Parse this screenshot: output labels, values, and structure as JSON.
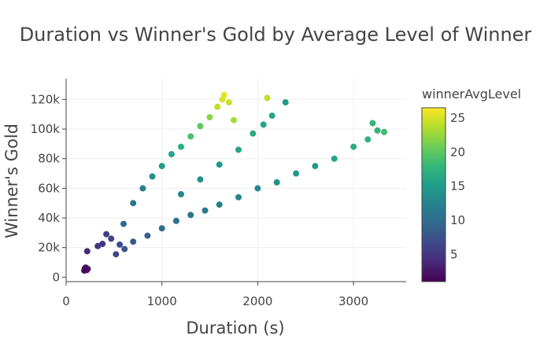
{
  "chart_data": {
    "type": "scatter",
    "title": "Duration vs Winner's Gold by Average Level of Winner",
    "xlabel": "Duration (s)",
    "ylabel": "Winner's Gold",
    "xlim": [
      0,
      3550
    ],
    "ylim": [
      -3000,
      134000
    ],
    "x_ticks": [
      {
        "value": 0,
        "label": "0"
      },
      {
        "value": 1000,
        "label": "1000"
      },
      {
        "value": 2000,
        "label": "2000"
      },
      {
        "value": 3000,
        "label": "3000"
      }
    ],
    "y_ticks": [
      {
        "value": 0,
        "label": "0"
      },
      {
        "value": 20000,
        "label": "20k"
      },
      {
        "value": 40000,
        "label": "40k"
      },
      {
        "value": 60000,
        "label": "60k"
      },
      {
        "value": 80000,
        "label": "80k"
      },
      {
        "value": 100000,
        "label": "100k"
      },
      {
        "value": 120000,
        "label": "120k"
      }
    ],
    "grid": true,
    "colorbar": {
      "title": "winnerAvgLevel",
      "range": [
        1,
        26.5
      ],
      "ticks": [
        {
          "value": 5,
          "label": "5"
        },
        {
          "value": 10,
          "label": "10"
        },
        {
          "value": 15,
          "label": "15"
        },
        {
          "value": 20,
          "label": "20"
        },
        {
          "value": 25,
          "label": "25"
        }
      ],
      "colorscale": [
        "#440154",
        "#482878",
        "#3e4989",
        "#31688e",
        "#26828e",
        "#1f9e89",
        "#35b779",
        "#6ece58",
        "#b5de2b",
        "#fde725"
      ]
    },
    "points": [
      {
        "x": 190,
        "y": 4500,
        "c": 1.5
      },
      {
        "x": 200,
        "y": 5200,
        "c": 2
      },
      {
        "x": 210,
        "y": 6000,
        "c": 2.5
      },
      {
        "x": 215,
        "y": 4800,
        "c": 1.8
      },
      {
        "x": 225,
        "y": 5600,
        "c": 2.2
      },
      {
        "x": 205,
        "y": 6500,
        "c": 2.8
      },
      {
        "x": 195,
        "y": 5800,
        "c": 1.6
      },
      {
        "x": 220,
        "y": 17500,
        "c": 4
      },
      {
        "x": 330,
        "y": 21000,
        "c": 5
      },
      {
        "x": 380,
        "y": 22500,
        "c": 5.5
      },
      {
        "x": 420,
        "y": 29000,
        "c": 6
      },
      {
        "x": 470,
        "y": 26000,
        "c": 6
      },
      {
        "x": 520,
        "y": 15500,
        "c": 6.5
      },
      {
        "x": 560,
        "y": 22000,
        "c": 7
      },
      {
        "x": 610,
        "y": 19000,
        "c": 7.5
      },
      {
        "x": 700,
        "y": 24000,
        "c": 8
      },
      {
        "x": 850,
        "y": 28000,
        "c": 9
      },
      {
        "x": 1000,
        "y": 33000,
        "c": 10
      },
      {
        "x": 1150,
        "y": 38000,
        "c": 10.5
      },
      {
        "x": 1300,
        "y": 42000,
        "c": 11
      },
      {
        "x": 1450,
        "y": 45000,
        "c": 11.5
      },
      {
        "x": 1600,
        "y": 49000,
        "c": 12
      },
      {
        "x": 1800,
        "y": 54000,
        "c": 12.5
      },
      {
        "x": 2000,
        "y": 60000,
        "c": 13
      },
      {
        "x": 2200,
        "y": 64000,
        "c": 14
      },
      {
        "x": 2400,
        "y": 70000,
        "c": 14.5
      },
      {
        "x": 2600,
        "y": 75000,
        "c": 15
      },
      {
        "x": 2800,
        "y": 80000,
        "c": 16
      },
      {
        "x": 3000,
        "y": 88000,
        "c": 17
      },
      {
        "x": 3150,
        "y": 93000,
        "c": 17.5
      },
      {
        "x": 3200,
        "y": 104000,
        "c": 18
      },
      {
        "x": 3250,
        "y": 99000,
        "c": 17.5
      },
      {
        "x": 3320,
        "y": 98000,
        "c": 18.5
      },
      {
        "x": 600,
        "y": 36000,
        "c": 10
      },
      {
        "x": 700,
        "y": 50000,
        "c": 11
      },
      {
        "x": 800,
        "y": 60000,
        "c": 12
      },
      {
        "x": 900,
        "y": 68000,
        "c": 14
      },
      {
        "x": 1000,
        "y": 75000,
        "c": 15
      },
      {
        "x": 1100,
        "y": 83000,
        "c": 16
      },
      {
        "x": 1200,
        "y": 88000,
        "c": 17
      },
      {
        "x": 1300,
        "y": 95000,
        "c": 19
      },
      {
        "x": 1400,
        "y": 102000,
        "c": 20
      },
      {
        "x": 1500,
        "y": 108000,
        "c": 22
      },
      {
        "x": 1580,
        "y": 115000,
        "c": 24
      },
      {
        "x": 1630,
        "y": 120000,
        "c": 25
      },
      {
        "x": 1650,
        "y": 123000,
        "c": 25.5
      },
      {
        "x": 1700,
        "y": 118000,
        "c": 24.5
      },
      {
        "x": 1750,
        "y": 106000,
        "c": 23
      },
      {
        "x": 2100,
        "y": 121000,
        "c": 24
      },
      {
        "x": 2060,
        "y": 103000,
        "c": 16
      },
      {
        "x": 2290,
        "y": 118000,
        "c": 15
      },
      {
        "x": 2150,
        "y": 109000,
        "c": 16
      },
      {
        "x": 1950,
        "y": 97000,
        "c": 16.5
      },
      {
        "x": 1800,
        "y": 86000,
        "c": 16
      },
      {
        "x": 1600,
        "y": 76000,
        "c": 15
      },
      {
        "x": 1400,
        "y": 66000,
        "c": 14
      },
      {
        "x": 1200,
        "y": 56000,
        "c": 13
      }
    ]
  }
}
